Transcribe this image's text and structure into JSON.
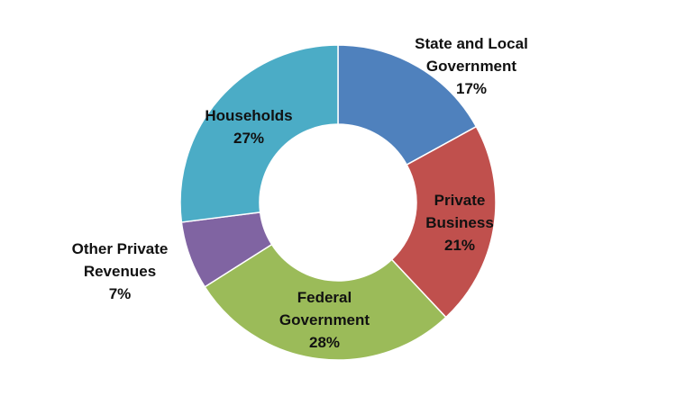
{
  "chart_data": {
    "type": "donut",
    "categories": [
      "State and Local Government",
      "Private Business",
      "Federal Government",
      "Other Private Revenues",
      "Households"
    ],
    "values": [
      17,
      21,
      28,
      7,
      27
    ],
    "value_labels": [
      "17%",
      "21%",
      "28%",
      "7%",
      "27%"
    ],
    "colors": [
      "#4f81bd",
      "#c0504d",
      "#9bbb59",
      "#8064a2",
      "#4bacc6"
    ]
  }
}
